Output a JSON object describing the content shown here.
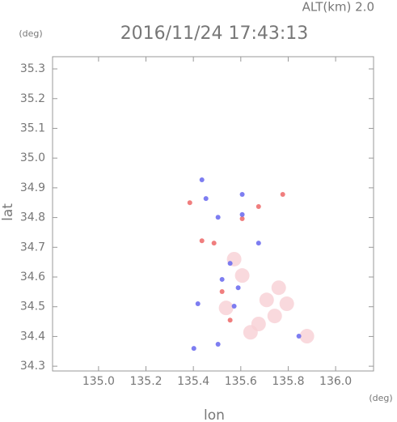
{
  "chart_data": {
    "type": "scatter",
    "title": "2016/11/24 17:43:13",
    "subtitle": "ALT(km)  2.0",
    "y_unit": "(deg)",
    "x_unit": "(deg)",
    "x_label": "lon",
    "y_label": "lat",
    "xlim": [
      134.806,
      136.16
    ],
    "ylim": [
      34.284,
      35.341
    ],
    "xticks": [
      {
        "value": 135,
        "label": "135.0"
      },
      135.2,
      135.4,
      135.6,
      135.8,
      {
        "value": 136,
        "label": "136.0"
      }
    ],
    "yticks": [
      34.3,
      34.4,
      34.5,
      34.6,
      34.7,
      34.8,
      34.9,
      {
        "value": 35,
        "label": "35.0"
      },
      35.1,
      35.2,
      35.3
    ],
    "series": [
      {
        "color": "#f8d0d4",
        "x": [
          135.709,
          135.675,
          135.743,
          135.606,
          135.538,
          135.76,
          135.641,
          135.879,
          135.572,
          135.794
        ],
        "y": [
          34.523,
          34.442,
          34.469,
          34.605,
          34.496,
          34.564,
          34.414,
          34.401,
          34.66,
          34.51
        ]
      },
      {
        "color": "#ee7070",
        "x": [
          135.436,
          135.487,
          135.777,
          135.675,
          135.606,
          135.555,
          135.385,
          135.521
        ],
        "y": [
          34.722,
          34.714,
          34.878,
          34.837,
          34.796,
          34.455,
          34.85,
          34.551
        ]
      },
      {
        "color": "#6f6ff0",
        "x": [
          135.436,
          135.453,
          135.504,
          135.606,
          135.555,
          135.521,
          135.589,
          135.572,
          135.419,
          135.606,
          135.402,
          135.504,
          135.845,
          135.675
        ],
        "y": [
          34.927,
          34.864,
          34.801,
          34.81,
          34.646,
          34.592,
          34.564,
          34.502,
          34.51,
          34.878,
          34.36,
          34.374,
          34.401,
          34.714
        ]
      }
    ]
  }
}
